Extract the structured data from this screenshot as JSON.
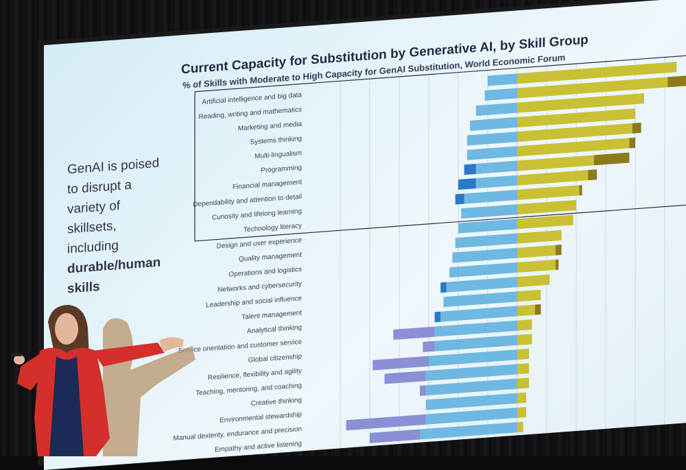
{
  "slide": {
    "title": "Current Capacity for Substitution by Generative AI, by Skill Group",
    "subtitle": "% of Skills with Moderate to High Capacity  for GenAI Substitution, World Economic Forum",
    "left_text": {
      "lines": [
        "GenAI is poised",
        "to disrupt a",
        "variety of",
        "skillsets,",
        "including"
      ],
      "emphasis_lines": [
        "durable/human",
        "skills"
      ]
    }
  },
  "chart_data": {
    "type": "bar",
    "title": "Current Capacity for Substitution by Generative AI, by Skill Group",
    "subtitle": "% of Skills with Moderate to High Capacity  for GenAI Substitution, World Economic Forum",
    "categories": [
      "Artificial intelligence and big data",
      "Reading, writing and mathematics",
      "Marketing and media",
      "Systems thinking",
      "Multi-lingualism",
      "Programming",
      "Financial management",
      "Dependability and attention to detail",
      "Curiosity and lifelong learning",
      "Technology literacy",
      "Design and user experience",
      "Quality management",
      "Operations and logistics",
      "Networks and cybersecurity",
      "Leadership and social influence",
      "Talent management",
      "Analytical thinking",
      "Service orientation and customer service",
      "Global citizenship",
      "Resilience, flexibility and agility",
      "Teaching, mentoring, and coaching",
      "Creative thinking",
      "Environmental stewardship",
      "Manual dexterity, endurance and precision",
      "Empathy and active listening"
    ],
    "series": [
      {
        "values": [
          10,
          11,
          14,
          16,
          17,
          17,
          14,
          14,
          18,
          19,
          20,
          21,
          22,
          23,
          24,
          25,
          26,
          28,
          28,
          30,
          31,
          31,
          31,
          31,
          33
        ]
      },
      {
        "values": [
          0,
          0,
          0,
          0,
          0,
          0,
          4,
          6,
          3,
          0,
          0,
          0,
          0,
          0,
          2,
          0,
          2,
          14,
          4,
          19,
          14,
          2,
          0,
          27,
          17
        ]
      },
      {
        "values": [
          54,
          51,
          43,
          40,
          39,
          38,
          26,
          24,
          21,
          20,
          19,
          15,
          13,
          13,
          11,
          8,
          6,
          5,
          5,
          4,
          4,
          4,
          3,
          3,
          2
        ]
      },
      {
        "values": [
          0,
          10,
          0,
          0,
          3,
          2,
          12,
          3,
          1,
          0,
          0,
          0,
          2,
          1,
          0,
          0,
          2,
          0,
          0,
          0,
          0,
          0,
          0,
          0,
          0
        ]
      }
    ],
    "colors": {
      "left_light": "#6fb8e2",
      "left_dark": "#2a78c8",
      "left_purple": "#8a8fd6",
      "right_gold": "#c9c034",
      "right_brown": "#8c7a1c"
    },
    "highlight_box_rows": 10
  }
}
